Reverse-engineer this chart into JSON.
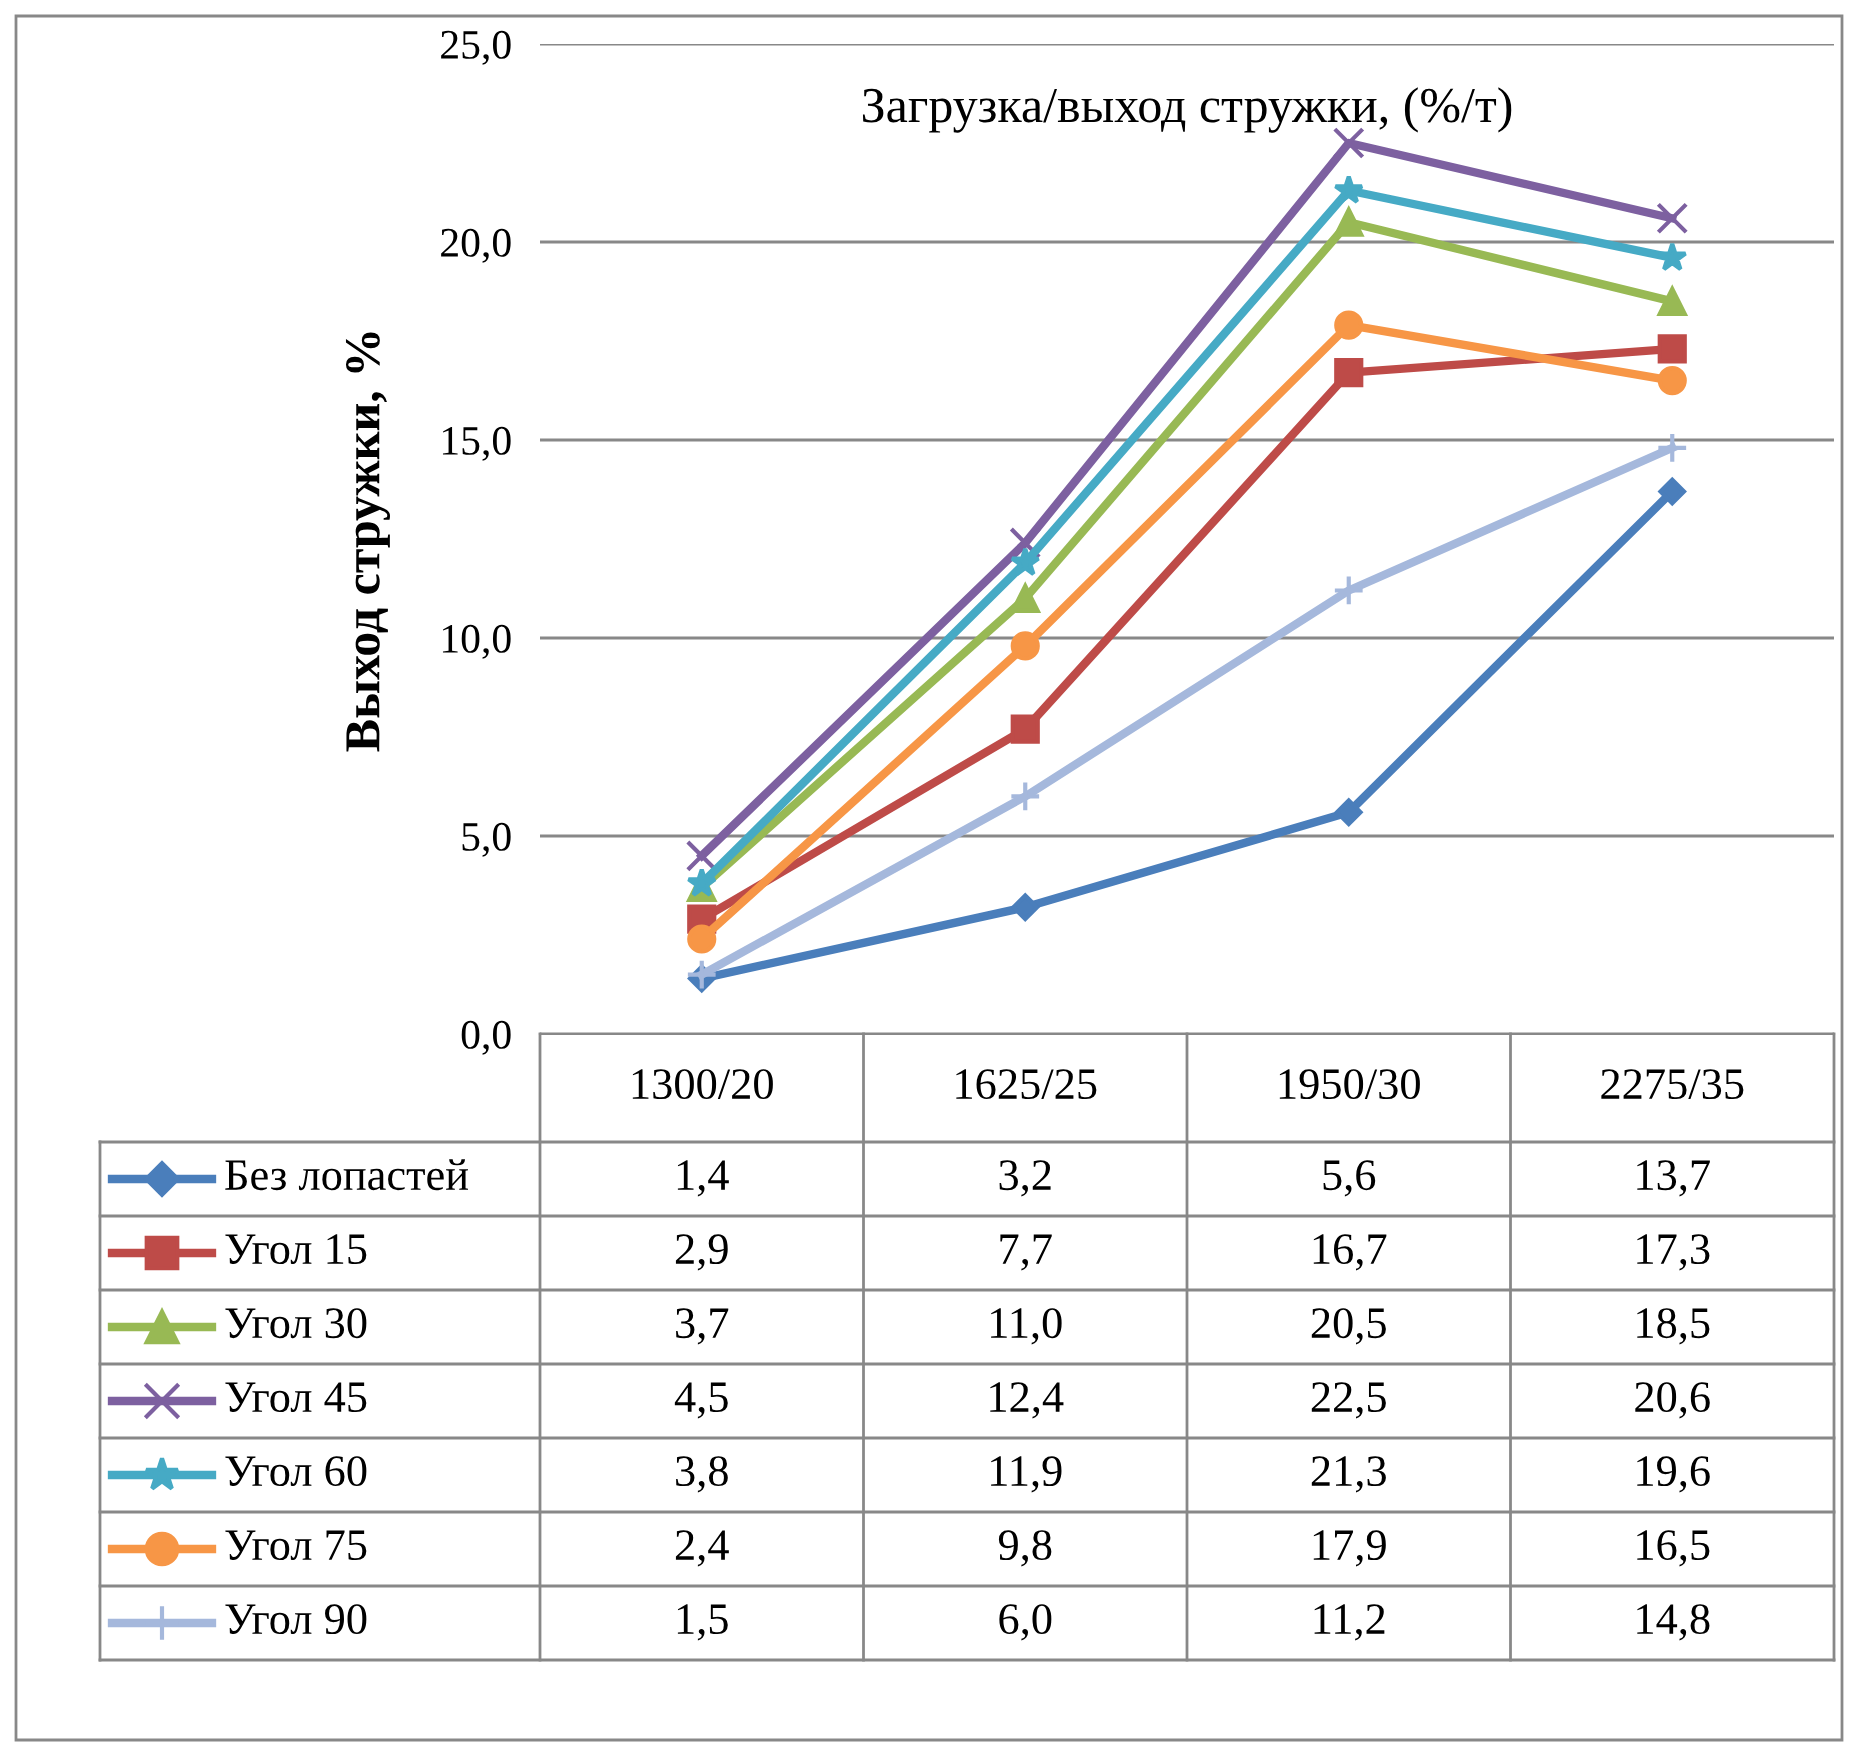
{
  "chart_data": {
    "type": "line",
    "title": "Загрузка/выход стружки, (%/т)",
    "ylabel": "Выход стружки, %",
    "categories": [
      "1300/20",
      "1625/25",
      "1950/30",
      "2275/35"
    ],
    "ylim": [
      0,
      25
    ],
    "yticks": [
      {
        "value": 0,
        "label": "0,0"
      },
      {
        "value": 5,
        "label": "5,0"
      },
      {
        "value": 10,
        "label": "10,0"
      },
      {
        "value": 15,
        "label": "15,0"
      },
      {
        "value": 20,
        "label": "20,0"
      },
      {
        "value": 25,
        "label": "25,0"
      }
    ],
    "grid": "y",
    "legend": "bottom",
    "series": [
      {
        "name": "Без лопастей",
        "color": "#4a7ebb",
        "marker": "diamond",
        "values": [
          1.4,
          3.2,
          5.6,
          13.7
        ],
        "value_labels": [
          "1,4",
          "3,2",
          "5,6",
          "13,7"
        ]
      },
      {
        "name": "Угол 15",
        "color": "#be4b48",
        "marker": "square",
        "values": [
          2.9,
          7.7,
          16.7,
          17.3
        ],
        "value_labels": [
          "2,9",
          "7,7",
          "16,7",
          "17,3"
        ]
      },
      {
        "name": "Угол 30",
        "color": "#98b954",
        "marker": "triangle",
        "values": [
          3.7,
          11.0,
          20.5,
          18.5
        ],
        "value_labels": [
          "3,7",
          "11,0",
          "20,5",
          "18,5"
        ]
      },
      {
        "name": "Угол 45",
        "color": "#7d60a0",
        "marker": "cross",
        "values": [
          4.5,
          12.4,
          22.5,
          20.6
        ],
        "value_labels": [
          "4,5",
          "12,4",
          "22,5",
          "20,6"
        ]
      },
      {
        "name": "Угол 60",
        "color": "#46aac5",
        "marker": "star",
        "values": [
          3.8,
          11.9,
          21.3,
          19.6
        ],
        "value_labels": [
          "3,8",
          "11,9",
          "21,3",
          "19,6"
        ]
      },
      {
        "name": "Угол 75",
        "color": "#f79646",
        "marker": "circle",
        "values": [
          2.4,
          9.8,
          17.9,
          16.5
        ],
        "value_labels": [
          "2,4",
          "9,8",
          "17,9",
          "16,5"
        ]
      },
      {
        "name": "Угол 90",
        "color": "#a5b8dc",
        "marker": "plus",
        "values": [
          1.5,
          6.0,
          11.2,
          14.8
        ],
        "value_labels": [
          "1,5",
          "6,0",
          "11,2",
          "14,8"
        ]
      }
    ]
  }
}
